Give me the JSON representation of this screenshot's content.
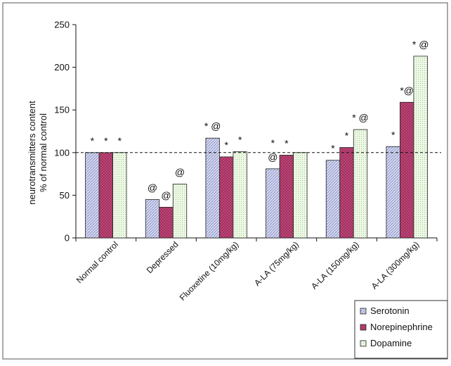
{
  "chart_data": {
    "type": "bar",
    "title": "",
    "xlabel": "",
    "ylabel_line1": "neurotransmitters content",
    "ylabel_line2": "% of normal control",
    "ylim": [
      0,
      250
    ],
    "yticks": [
      0,
      50,
      100,
      150,
      200,
      250
    ],
    "reference_line": 100,
    "grid": false,
    "legend_position": "bottom-right",
    "categories": [
      "Normal control",
      "Depressed",
      "Fluoxetine  (10mg/kg)",
      "A-LA (75mg/kg)",
      "A-LA (150mg/kg)",
      "A-LA (300mg/kg)"
    ],
    "series": [
      {
        "name": "Serotonin",
        "color": "#b9bfe0",
        "pattern": "diagonal",
        "values": [
          100,
          45,
          117,
          81,
          91,
          107
        ],
        "annotations": [
          "*",
          "@",
          "* @",
          "*\n@",
          "*",
          "*"
        ]
      },
      {
        "name": "Norepinephrine",
        "color": "#c2497a",
        "pattern": "crosshatch",
        "values": [
          100,
          36,
          95,
          97,
          106,
          159
        ],
        "annotations": [
          "*",
          "@",
          "*",
          "*",
          "*",
          "*@"
        ]
      },
      {
        "name": "Dopamine",
        "color": "#d9efc9",
        "pattern": "dots",
        "values": [
          100,
          63,
          101,
          100,
          127,
          213
        ],
        "annotations": [
          "*",
          "@",
          "*",
          "",
          "* @",
          "* @"
        ]
      }
    ]
  }
}
